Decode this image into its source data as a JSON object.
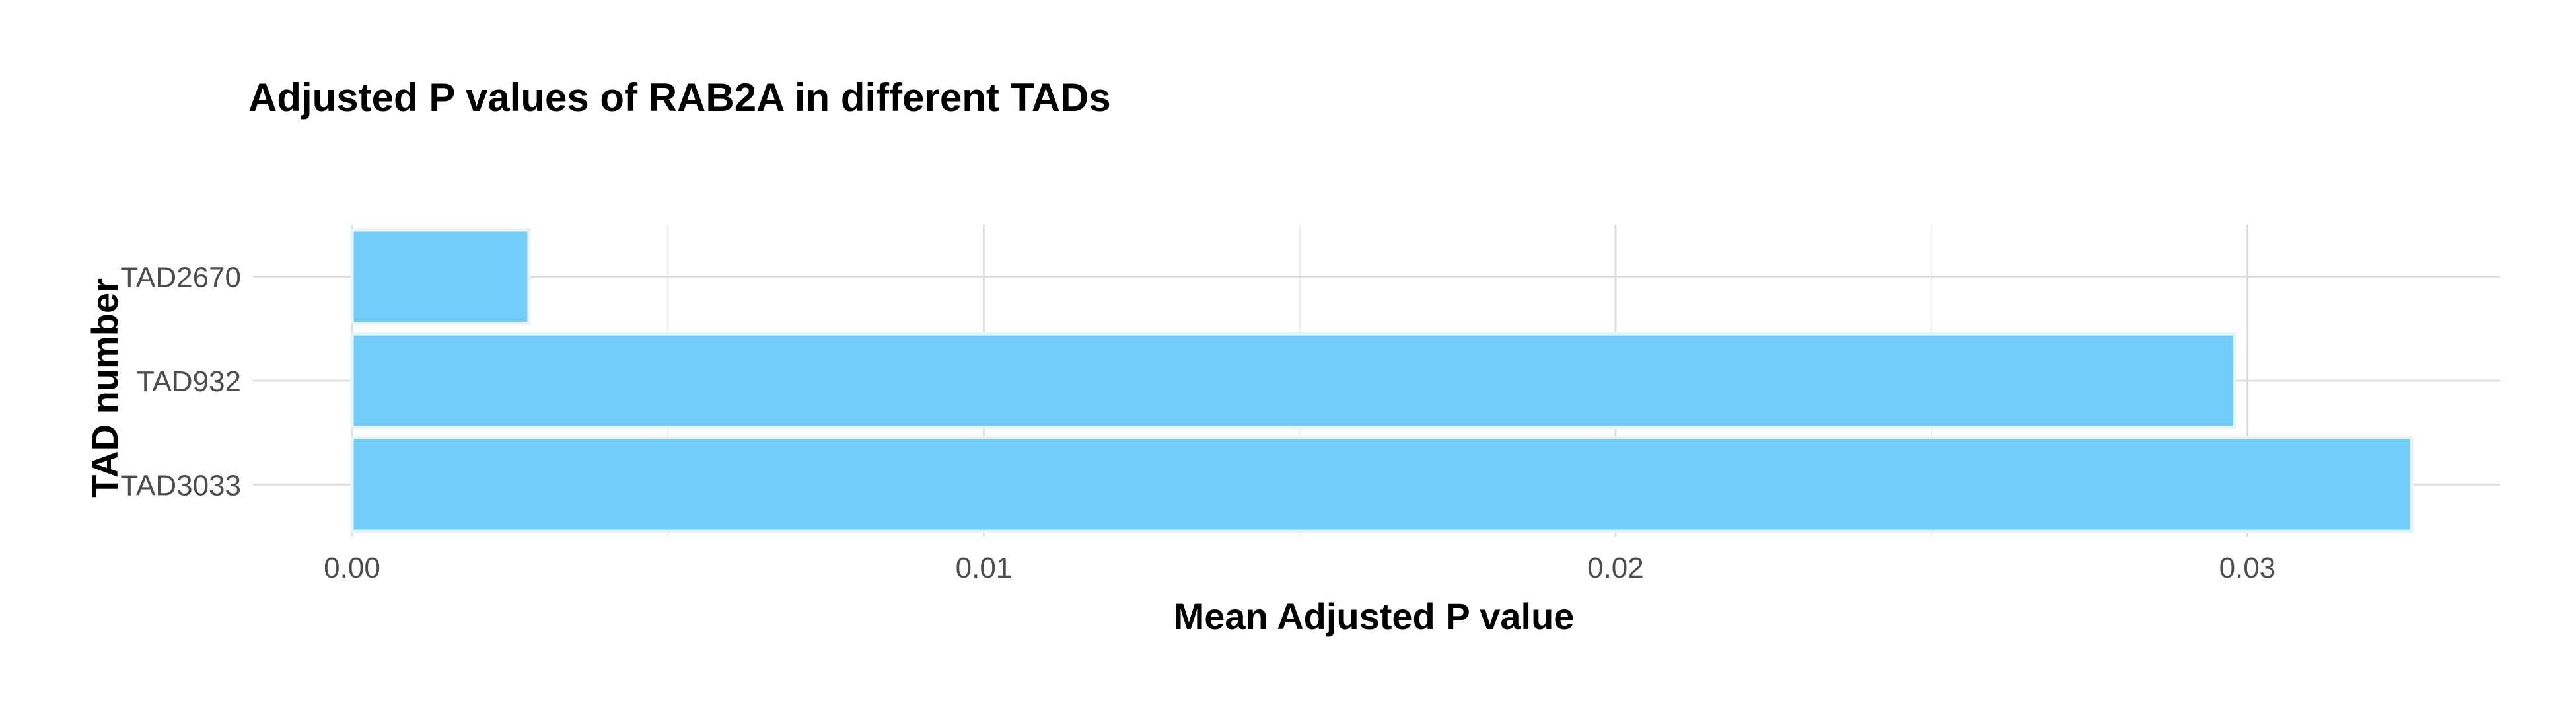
{
  "chart_data": {
    "type": "bar",
    "orientation": "horizontal",
    "title": "Adjusted P values of RAB2A in different TADs",
    "xlabel": "Mean Adjusted P value",
    "ylabel": "TAD number",
    "categories": [
      "TAD2670",
      "TAD932",
      "TAD3033"
    ],
    "values": [
      0.0028,
      0.0298,
      0.0326
    ],
    "xlim": [
      0,
      0.034
    ],
    "xticks": [
      0.0,
      0.01,
      0.02,
      0.03
    ],
    "xtick_labels": [
      "0.00",
      "0.01",
      "0.02",
      "0.03"
    ],
    "grid": true,
    "bar_color": "#73cdfb",
    "bar_edge_color": "#e4f4fd"
  }
}
